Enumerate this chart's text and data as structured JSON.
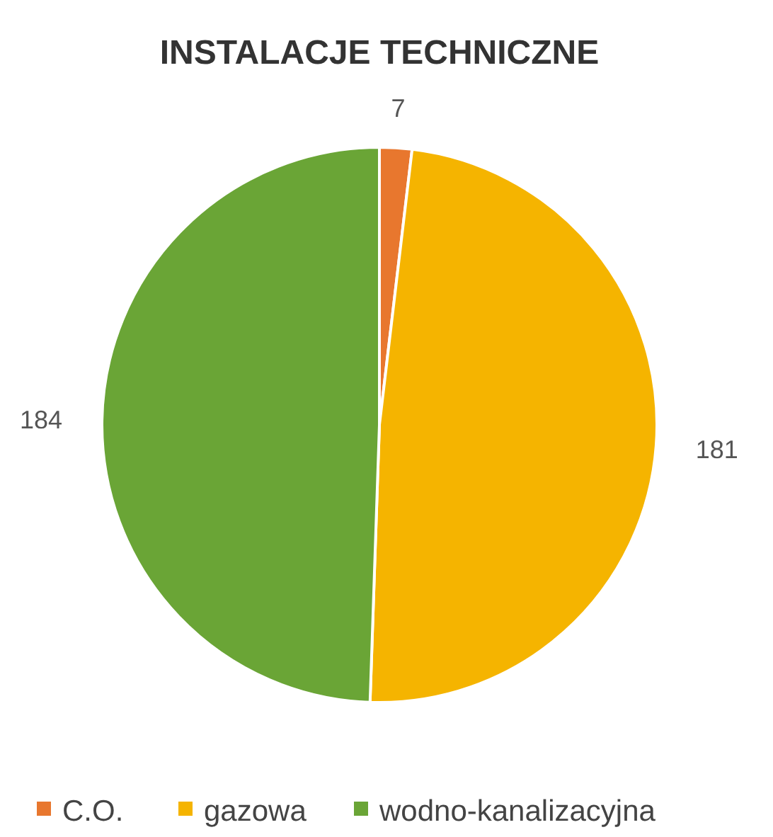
{
  "chart_data": {
    "type": "pie",
    "title": "INSTALACJE TECHNICZNE",
    "categories": [
      "C.O.",
      "gazowa",
      "wodno-kanalizacyjna"
    ],
    "values": [
      7,
      181,
      184
    ],
    "colors": [
      "#e8772e",
      "#f5b400",
      "#6aa536"
    ],
    "data_labels": true,
    "legend": "bottom"
  }
}
